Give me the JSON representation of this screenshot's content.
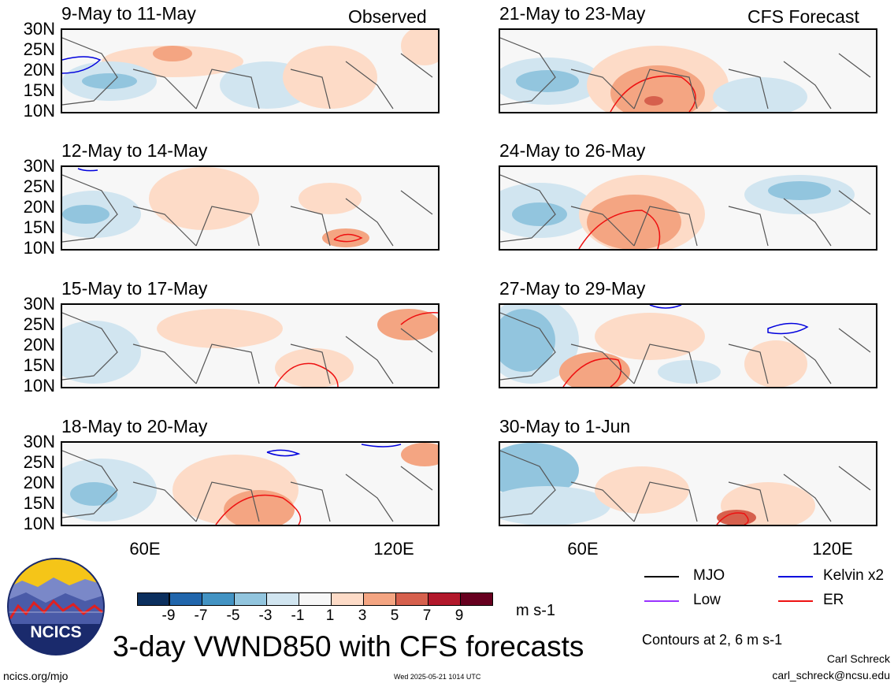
{
  "panels": [
    {
      "title": "9-May to 11-May",
      "tag": "Observed"
    },
    {
      "title": "21-May to 23-May",
      "tag": "CFS Forecast"
    },
    {
      "title": "12-May to 14-May",
      "tag": ""
    },
    {
      "title": "24-May to 26-May",
      "tag": ""
    },
    {
      "title": "15-May to 17-May",
      "tag": ""
    },
    {
      "title": "27-May to 29-May",
      "tag": ""
    },
    {
      "title": "18-May to 20-May",
      "tag": ""
    },
    {
      "title": "30-May to 1-Jun",
      "tag": ""
    }
  ],
  "lat_labels": [
    "30N",
    "25N",
    "20N",
    "15N",
    "10N"
  ],
  "lon_labels": [
    "60E",
    "120E"
  ],
  "colorbar": {
    "ticks": [
      "-9",
      "-7",
      "-5",
      "-3",
      "-1",
      "1",
      "3",
      "5",
      "7",
      "9"
    ],
    "units": "m s-1",
    "colors": [
      "#0b2f5e",
      "#2166ac",
      "#4393c3",
      "#92c5de",
      "#d1e5f0",
      "#f7f7f7",
      "#fddbc7",
      "#f4a582",
      "#d6604d",
      "#b2182b",
      "#67001f"
    ]
  },
  "legend": [
    {
      "label": "MJO",
      "color": "#000000"
    },
    {
      "label": "Kelvin x2",
      "color": "#0000dd"
    },
    {
      "label": "Low",
      "color": "#9933ff"
    },
    {
      "label": "ER",
      "color": "#ee1111"
    }
  ],
  "contours_note": "Contours at 2, 6 m s-1",
  "main_title": "3-day VWND850 with CFS forecasts",
  "author": "Carl Schreck",
  "email": "carl_schreck@ncsu.edu",
  "site": "ncics.org/mjo",
  "timestamp": "Wed 2025-05-21 1014 UTC",
  "logo_text": "NCICS"
}
